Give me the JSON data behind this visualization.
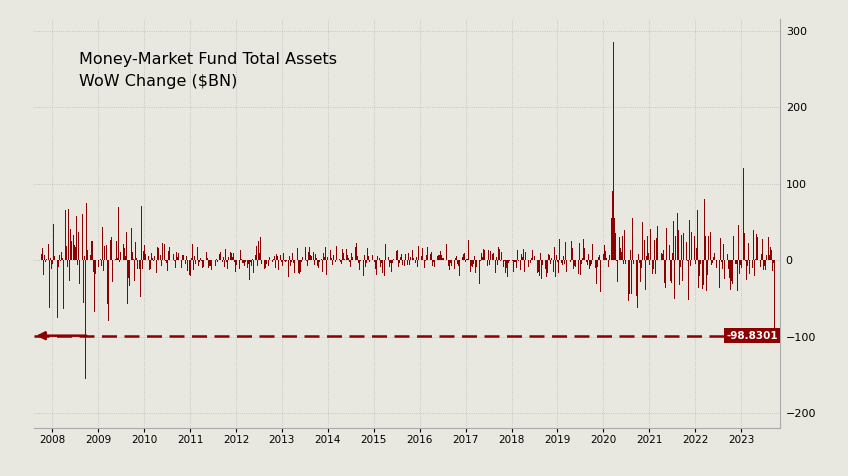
{
  "title_line1": "Money-Market Fund Total Assets",
  "title_line2": "WoW Change ($BN)",
  "bar_color": "#8B0000",
  "dashed_line_value": -98.8301,
  "dashed_line_label": "-98.8301",
  "background_color": "#e8e8e0",
  "ylim": [
    -220,
    315
  ],
  "yticks": [
    -200,
    -100,
    0,
    100,
    200,
    300
  ],
  "start_year": 2007.6,
  "end_year": 2023.85,
  "xtick_years": [
    2008,
    2009,
    2010,
    2011,
    2012,
    2013,
    2014,
    2015,
    2016,
    2017,
    2018,
    2019,
    2020,
    2021,
    2022,
    2023
  ],
  "grid_color": "#cccccc",
  "spine_color": "#aaaaaa"
}
